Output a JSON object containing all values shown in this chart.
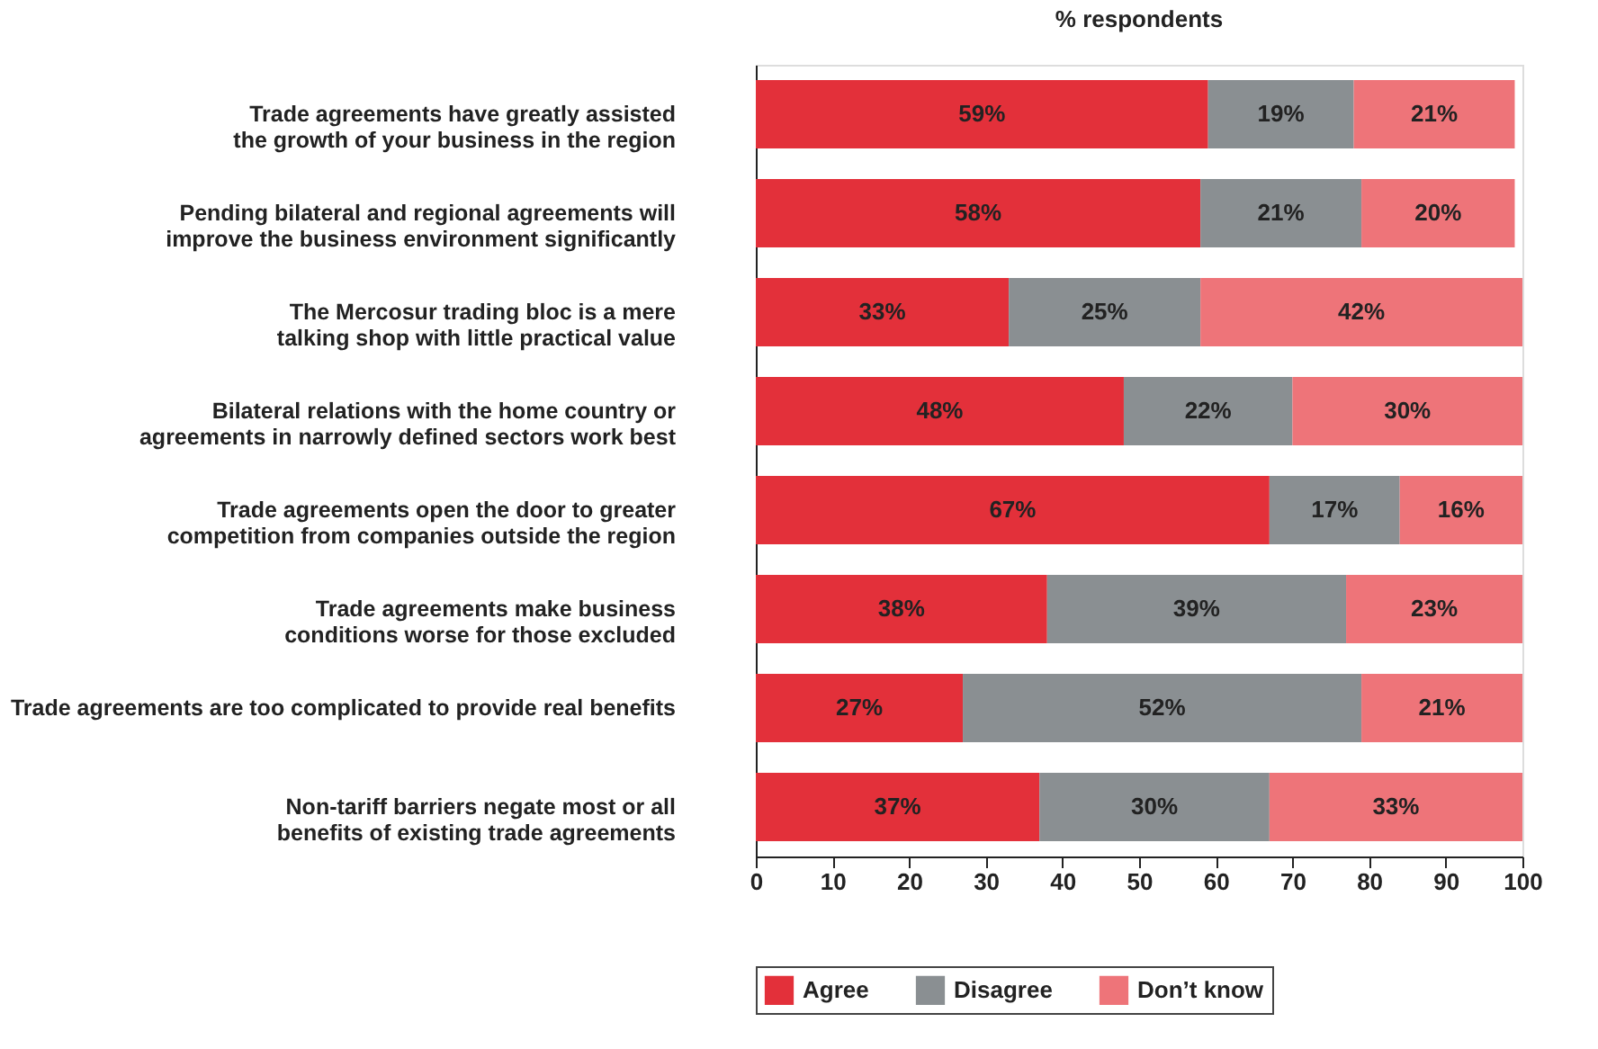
{
  "chart_data": {
    "type": "bar",
    "orientation": "horizontal",
    "stacked": true,
    "xlabel": "% respondents",
    "categories": [
      "Trade agreements have greatly assisted\nthe growth of your business in the region",
      "Pending bilateral and regional agreements will\nimprove the business environment significantly",
      "The Mercosur trading bloc is a mere\ntalking shop with little practical value",
      "Bilateral relations with the home country or\nagreements in narrowly defined sectors work best",
      "Trade agreements open the door to greater\ncompetition from companies outside the region",
      "Trade agreements make business\nconditions worse for those excluded",
      "Trade agreements are too complicated to provide real benefits",
      "Non-tariff barriers negate most or all\nbenefits of existing trade agreements"
    ],
    "series": [
      {
        "name": "Agree",
        "color": "#e3303a",
        "values": [
          59,
          58,
          33,
          48,
          67,
          38,
          27,
          37
        ],
        "value_labels": [
          "59%",
          "58%",
          "33%",
          "48%",
          "67%",
          "38%",
          "27%",
          "37%"
        ]
      },
      {
        "name": "Disagree",
        "color": "#8a8f92",
        "values": [
          19,
          21,
          25,
          22,
          17,
          39,
          52,
          30
        ],
        "value_labels": [
          "19%",
          "21%",
          "25%",
          "22%",
          "17%",
          "39%",
          "52%",
          "30%"
        ]
      },
      {
        "name": "Don’t know",
        "color": "#ee7479",
        "values": [
          21,
          20,
          42,
          30,
          16,
          23,
          21,
          33
        ],
        "value_labels": [
          "21%",
          "20%",
          "42%",
          "30%",
          "16%",
          "23%",
          "21%",
          "33%"
        ]
      }
    ],
    "xlim": [
      0,
      100
    ],
    "xticks": [
      0,
      10,
      20,
      30,
      40,
      50,
      60,
      70,
      80,
      90,
      100
    ],
    "grid": false,
    "legend": "bottom"
  }
}
